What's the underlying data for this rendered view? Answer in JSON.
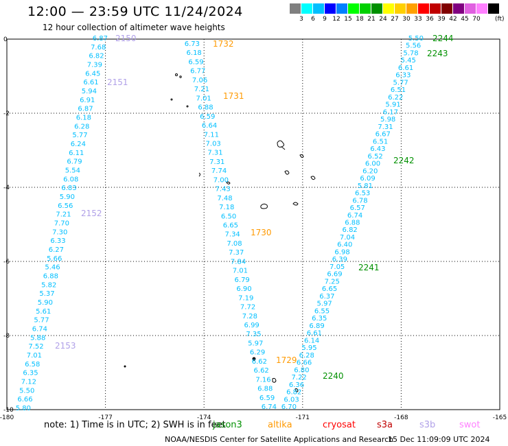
{
  "header": {
    "title": "12:00 — 23:59 UTC 11/24/2024",
    "subtitle": "12 hour collection of altimeter wave heights"
  },
  "legend": {
    "colors": [
      "#808080",
      "#00ffff",
      "#00bfff",
      "#0000ff",
      "#0080ff",
      "#00ff00",
      "#00d000",
      "#009000",
      "#ffff00",
      "#ffd000",
      "#ffa000",
      "#ff0000",
      "#c00000",
      "#800000",
      "#800080",
      "#e060e0",
      "#ff80ff",
      "#000000"
    ],
    "labels": [
      "3",
      "6",
      "9",
      "12",
      "15",
      "18",
      "21",
      "24",
      "27",
      "30",
      "33",
      "36",
      "39",
      "42",
      "45",
      "70"
    ],
    "unit": "(ft)"
  },
  "map": {
    "x_ticks": [
      "-180",
      "-177",
      "-174",
      "-171",
      "-168",
      "-165"
    ],
    "y_ticks": [
      "0",
      "-2",
      "-4",
      "-6",
      "-8",
      "-10"
    ],
    "tracks": [
      {
        "color": "#00bfff",
        "values": [
          "6.87",
          "7.68",
          "6.82",
          "7.39",
          "6.45",
          "6.61",
          "5.94",
          "6.91",
          "6.87",
          "6.18",
          "6.28",
          "5.77",
          "6.24",
          "6.11",
          "6.79",
          "5.54",
          "6.08",
          "6.83",
          "5.90",
          "6.56",
          "7.21",
          "7.70",
          "7.30",
          "6.33",
          "6.27",
          "5.66",
          "5.46",
          "6.88",
          "5.82",
          "5.37",
          "5.90",
          "5.61",
          "5.77",
          "6.74",
          "5.88",
          "7.52",
          "7.01",
          "6.58",
          "6.35",
          "7.12",
          "5.50",
          "6.66",
          "5.80"
        ],
        "labels": [
          {
            "text": "2150",
            "color": "#b0a0e8"
          },
          {
            "text": "2151",
            "color": "#b0a0e8"
          },
          {
            "text": "2152",
            "color": "#b0a0e8"
          },
          {
            "text": "2153",
            "color": "#b0a0e8"
          }
        ]
      },
      {
        "color": "#00bfff",
        "values": [
          "6.73",
          "6.18",
          "6.59",
          "6.77",
          "7.06",
          "7.21",
          "7.01",
          "6.88",
          "6.59",
          "6.64",
          "7.11",
          "7.03",
          "7.31",
          "7.31",
          "7.74",
          "7.00",
          "7.43",
          "7.48",
          "7.18",
          "6.50",
          "6.65",
          "7.34",
          "7.08",
          "7.37",
          "7.84",
          "7.01",
          "6.79",
          "6.90",
          "7.19",
          "7.72",
          "7.28",
          "6.99",
          "7.35",
          "5.97",
          "6.29",
          "6.62",
          "6.62",
          "7.16",
          "6.88",
          "6.59",
          "6.74"
        ],
        "labels": [
          {
            "text": "1732",
            "color": "#ff9900"
          },
          {
            "text": "1731",
            "color": "#ff9900"
          },
          {
            "text": "1730",
            "color": "#ff9900"
          },
          {
            "text": "1729",
            "color": "#ff9900"
          }
        ]
      },
      {
        "color": "#00bfff",
        "values": [
          "5.50",
          "5.56",
          "5.78",
          "5.45",
          "6.61",
          "6.33",
          "5.77",
          "6.51",
          "6.22",
          "5.91",
          "6.17",
          "5.98",
          "7.31",
          "6.67",
          "6.51",
          "6.43",
          "6.52",
          "6.00",
          "6.20",
          "6.09",
          "5.81",
          "6.53",
          "6.78",
          "6.57",
          "6.74",
          "6.88",
          "6.82",
          "7.04",
          "6.40",
          "6.98",
          "6.39",
          "7.05",
          "6.69",
          "7.25",
          "6.65",
          "6.37",
          "5.97",
          "6.55",
          "6.35",
          "6.89",
          "6.61",
          "6.14",
          "5.95",
          "6.28",
          "6.66",
          "6.80",
          "7.22",
          "6.36",
          "6.82",
          "6.03",
          "6.70"
        ],
        "labels": [
          {
            "text": "2244",
            "color": "#009000"
          },
          {
            "text": "2243",
            "color": "#009000"
          },
          {
            "text": "2242",
            "color": "#009000"
          },
          {
            "text": "2241",
            "color": "#009000"
          },
          {
            "text": "2240",
            "color": "#009000"
          }
        ]
      }
    ]
  },
  "footer": {
    "note": "note:  1) Time is in UTC;  2) SWH is in feet",
    "satellites": [
      {
        "name": "jason3",
        "color": "#009000"
      },
      {
        "name": "altika",
        "color": "#ff9900"
      },
      {
        "name": "cryosat",
        "color": "#ff0000"
      },
      {
        "name": "s3a",
        "color": "#c00000"
      },
      {
        "name": "s3b",
        "color": "#b0a0e8"
      },
      {
        "name": "swot",
        "color": "#ff80ff"
      }
    ],
    "credit": "NOAA/NESDIS Center for Satellite Applications and Research",
    "timestamp": "15 Dec 11:09:09 UTC 2024"
  }
}
